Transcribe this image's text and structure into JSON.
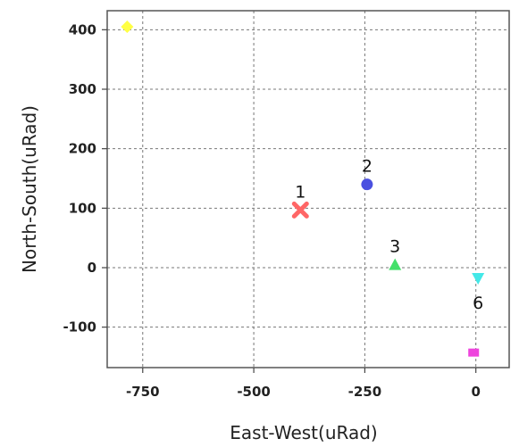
{
  "chart_data": {
    "type": "scatter",
    "xlabel": "East-West(uRad)",
    "ylabel": "North-South(uRad)",
    "xlim": [
      -830,
      75
    ],
    "ylim": [
      -168,
      432
    ],
    "xticks": [
      -750,
      -500,
      -250,
      0
    ],
    "yticks": [
      -100,
      0,
      100,
      200,
      300,
      400
    ],
    "grid": true,
    "points": [
      {
        "label": "",
        "x": -785,
        "y": 405,
        "marker": "diamond",
        "color": "#ffff44"
      },
      {
        "label": "1",
        "x": -395,
        "y": 97,
        "marker": "x",
        "color": "#ff6666"
      },
      {
        "label": "2",
        "x": -245,
        "y": 140,
        "marker": "circle",
        "color": "#4a50e0"
      },
      {
        "label": "3",
        "x": -182,
        "y": 5,
        "marker": "triangle",
        "color": "#44e06a"
      },
      {
        "label": "6",
        "x": 5,
        "y": -18,
        "marker": "down-triangle",
        "color": "#44e8e8"
      },
      {
        "label": "",
        "x": -5,
        "y": -142,
        "marker": "square",
        "color": "#ee44dd"
      }
    ]
  }
}
